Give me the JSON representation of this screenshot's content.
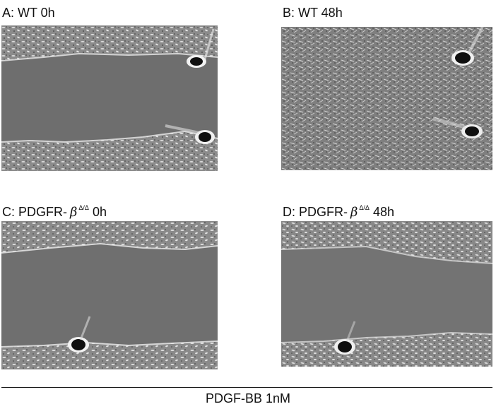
{
  "panels": [
    {
      "id": "A",
      "prefix": "A: WT 0h",
      "superscript": "",
      "suffix": "",
      "greek": ""
    },
    {
      "id": "B",
      "prefix": "B: WT 48h",
      "superscript": "",
      "suffix": "",
      "greek": ""
    },
    {
      "id": "C",
      "prefix": "C: PDGFR-",
      "greek": "β",
      "superscript": "Δ/Δ",
      "suffix": " 0h"
    },
    {
      "id": "D",
      "prefix": "D: PDGFR-",
      "greek": "β",
      "superscript": "Δ/Δ",
      "suffix": " 48h"
    }
  ],
  "caption": "PDGF-BB 1nM",
  "colors": {
    "background": "#ffffff",
    "gap_gray": "#6e6e6e",
    "cell_layer_gray": "#8a8a8a",
    "text": "#111111"
  }
}
